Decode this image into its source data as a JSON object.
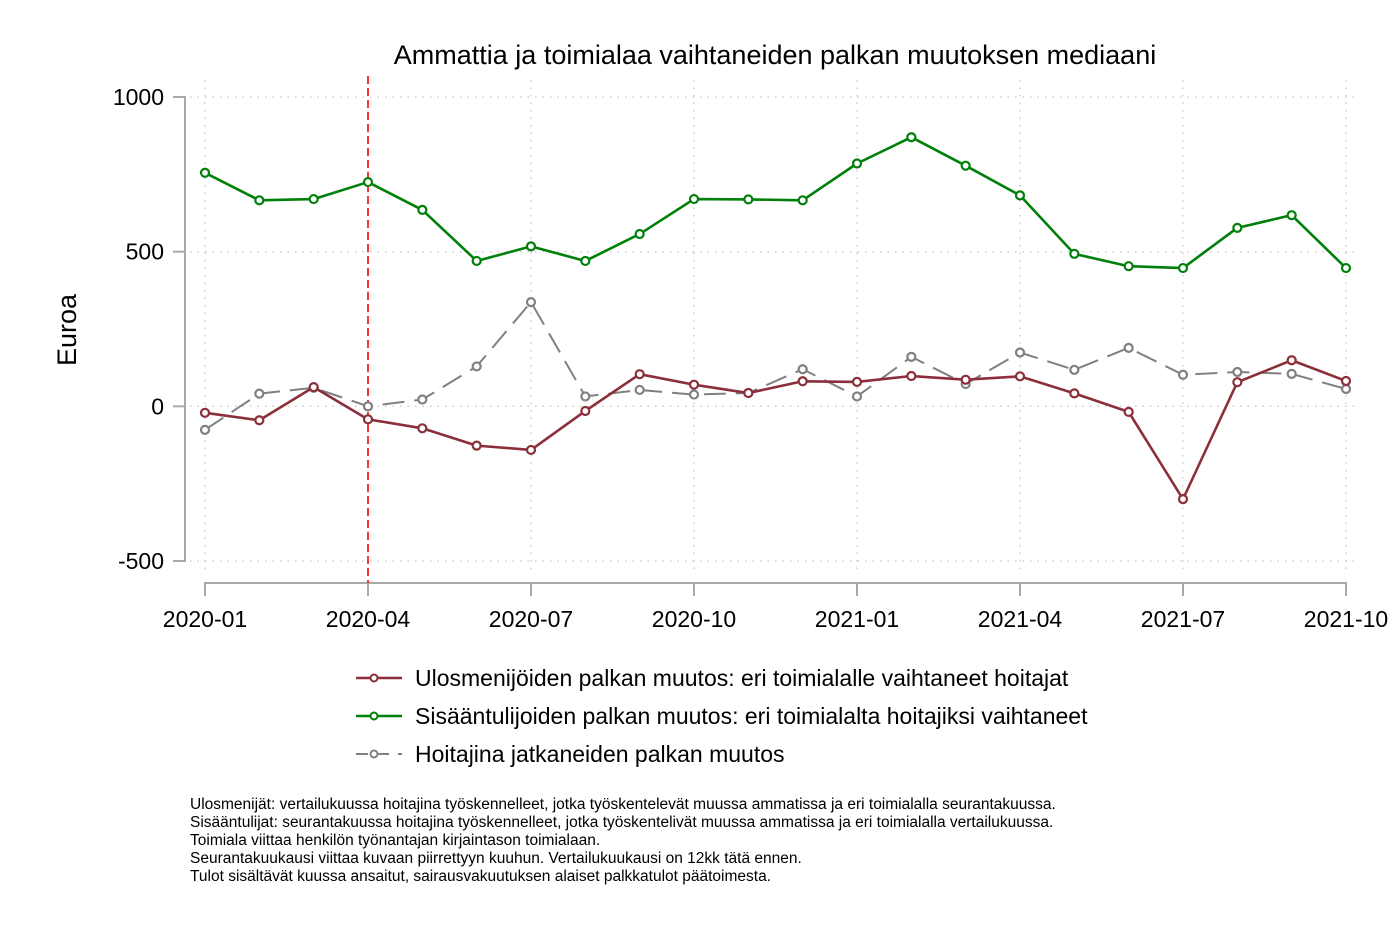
{
  "chart_data": {
    "type": "line",
    "title": "Ammattia ja toimialaa vaihtaneiden palkan muutoksen mediaani",
    "xlabel": "",
    "ylabel": "Euroa",
    "ylim": [
      -500,
      1000
    ],
    "yticks": [
      1000,
      500,
      0,
      -500
    ],
    "ytick_labels": [
      "1000",
      "500",
      "0",
      "-500"
    ],
    "xticks": [
      "2020-01",
      "2020-04",
      "2020-07",
      "2020-10",
      "2021-01",
      "2021-04",
      "2021-07",
      "2021-10"
    ],
    "x": [
      "2020-01",
      "2020-02",
      "2020-03",
      "2020-04",
      "2020-05",
      "2020-06",
      "2020-07",
      "2020-08",
      "2020-09",
      "2020-10",
      "2020-11",
      "2020-12",
      "2021-01",
      "2021-02",
      "2021-03",
      "2021-04",
      "2021-05",
      "2021-06",
      "2021-07",
      "2021-08",
      "2021-09",
      "2021-10"
    ],
    "grid": true,
    "reference_line": {
      "x": "2020-04",
      "color": "#ff0000",
      "style": "dashed"
    },
    "legend_position": "bottom",
    "series": [
      {
        "name": "Ulosmenijöiden palkan muutos: eri toimialalle vaihtaneet hoitajat",
        "color": "#8b2f3a",
        "style": "solid",
        "values": [
          -21,
          -45,
          62,
          -42,
          -71,
          -127,
          -141,
          -15,
          104,
          70,
          43,
          81,
          79,
          98,
          86,
          97,
          42,
          -18,
          -300,
          78,
          149,
          82
        ]
      },
      {
        "name": "Sisääntulijoiden palkan muutos: eri toimialalta hoitajiksi vaihtaneet",
        "color": "#00800a",
        "style": "solid",
        "values": [
          755,
          666,
          670,
          725,
          635,
          470,
          517,
          470,
          557,
          670,
          669,
          666,
          785,
          870,
          778,
          682,
          493,
          453,
          447,
          577,
          618,
          447
        ]
      },
      {
        "name": "Hoitajina jatkaneiden palkan muutos",
        "color": "#808080",
        "style": "dashed",
        "values": [
          -76,
          41,
          60,
          0,
          22,
          129,
          337,
          32,
          53,
          38,
          43,
          120,
          32,
          160,
          72,
          174,
          118,
          189,
          102,
          111,
          105,
          56
        ]
      }
    ]
  },
  "notes": [
    "Ulosmenijät: vertailukuussa hoitajina työskennelleet, jotka työskentelevät muussa ammatissa ja eri toimialalla seurantakuussa.",
    "Sisääntulijat: seurantakuussa hoitajina työskennelleet, jotka työskentelivät muussa ammatissa ja eri toimialalla vertailukuussa.",
    "Toimiala viittaa henkilön työnantajan kirjaintason toimialaan.",
    "Seurantakuukausi viittaa kuvaan piirrettyyn kuuhun. Vertailukuukausi on 12kk tätä ennen.",
    "Tulot sisältävät kuussa ansaitut, sairausvakuutuksen alaiset palkkatulot päätoimesta."
  ]
}
